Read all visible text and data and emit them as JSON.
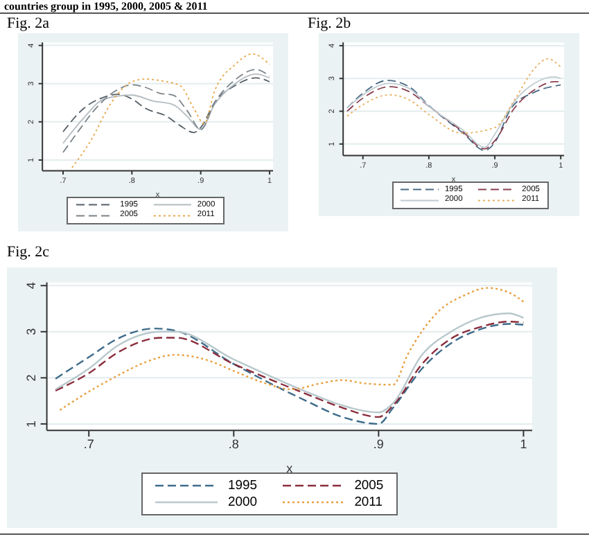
{
  "chart_data": [
    {
      "type": "line",
      "title": "Fig. 2a",
      "xlabel": "x",
      "annotations": [
        "countries group in 1995,  2000, 2005 & 2011"
      ],
      "xlim": [
        0.67,
        1.005
      ],
      "xticks": [
        {
          "value": 0.7,
          "label": ".7"
        },
        {
          "value": 0.8,
          "label": ".8"
        },
        {
          "value": 0.9,
          "label": ".9"
        },
        {
          "value": 1,
          "label": "1"
        }
      ],
      "ylim": [
        0.72,
        4.08
      ],
      "yticks": [
        1,
        2,
        3,
        4
      ],
      "grid": "y",
      "legend": "bottom",
      "marker": "none",
      "series": [
        {
          "name": "1995",
          "color": "#555f66",
          "line_style": "dashed",
          "x": [
            0.7,
            0.73,
            0.76,
            0.78,
            0.8,
            0.82,
            0.85,
            0.87,
            0.89,
            0.9,
            0.92,
            0.95,
            0.98,
            1.0
          ],
          "values": [
            1.74,
            2.35,
            2.65,
            2.72,
            2.6,
            2.35,
            2.15,
            1.9,
            1.72,
            1.85,
            2.5,
            2.95,
            3.15,
            3.05
          ]
        },
        {
          "name": "2000",
          "color": "#b4bcc0",
          "line_style": "solid",
          "x": [
            0.7,
            0.73,
            0.76,
            0.8,
            0.83,
            0.86,
            0.88,
            0.9,
            0.92,
            0.95,
            0.98,
            1.0
          ],
          "values": [
            1.44,
            2.1,
            2.6,
            2.7,
            2.55,
            2.45,
            2.15,
            1.8,
            2.45,
            3.0,
            3.25,
            3.15
          ]
        },
        {
          "name": "2005",
          "color": "#7a8288",
          "line_style": "dashed",
          "x": [
            0.7,
            0.72,
            0.75,
            0.78,
            0.8,
            0.82,
            0.84,
            0.86,
            0.88,
            0.9,
            0.92,
            0.95,
            0.98,
            1.0
          ],
          "values": [
            1.2,
            1.7,
            2.4,
            2.85,
            2.97,
            2.9,
            2.75,
            2.7,
            2.3,
            1.8,
            2.5,
            3.1,
            3.37,
            3.2
          ]
        },
        {
          "name": "2011",
          "color": "#e8a84a",
          "line_style": "dotted",
          "x": [
            0.713,
            0.74,
            0.77,
            0.8,
            0.82,
            0.85,
            0.87,
            0.89,
            0.905,
            0.92,
            0.95,
            0.975,
            1.0
          ],
          "values": [
            0.8,
            1.5,
            2.5,
            3.05,
            3.12,
            3.05,
            2.95,
            2.35,
            1.95,
            2.8,
            3.5,
            3.78,
            3.5
          ]
        }
      ]
    },
    {
      "type": "line",
      "title": "Fig. 2b",
      "xlabel": "x",
      "xlim": [
        0.67,
        1.005
      ],
      "xticks": [
        {
          "value": 0.7,
          "label": ".7"
        },
        {
          "value": 0.8,
          "label": ".8"
        },
        {
          "value": 0.9,
          "label": ".9"
        },
        {
          "value": 1,
          "label": "1"
        }
      ],
      "ylim": [
        0.65,
        4.1
      ],
      "yticks": [
        1,
        2,
        3,
        4
      ],
      "grid": "y",
      "legend": "bottom right",
      "marker": "none",
      "series": [
        {
          "name": "1995",
          "color": "#4a6a86",
          "line_style": "dashed",
          "x": [
            0.676,
            0.7,
            0.737,
            0.77,
            0.8,
            0.852,
            0.885,
            0.9,
            0.925,
            0.96,
            1.0
          ],
          "values": [
            2.1,
            2.55,
            2.94,
            2.75,
            2.17,
            1.33,
            0.8,
            1.05,
            2.1,
            2.58,
            2.8
          ]
        },
        {
          "name": "2005",
          "color": "#8a4050",
          "line_style": "dashed",
          "x": [
            0.676,
            0.7,
            0.74,
            0.77,
            0.8,
            0.85,
            0.885,
            0.9,
            0.93,
            0.96,
            0.99,
            1.0
          ],
          "values": [
            2.0,
            2.4,
            2.75,
            2.6,
            2.15,
            1.4,
            0.85,
            1.1,
            2.1,
            2.65,
            2.9,
            2.9
          ]
        },
        {
          "name": "2000",
          "color": "#c0ccd0",
          "line_style": "solid",
          "x": [
            0.676,
            0.7,
            0.74,
            0.77,
            0.8,
            0.85,
            0.885,
            0.9,
            0.93,
            0.96,
            0.99,
            1.0
          ],
          "values": [
            2.1,
            2.5,
            2.85,
            2.7,
            2.15,
            1.45,
            0.9,
            1.3,
            2.3,
            2.85,
            3.05,
            3.0
          ]
        },
        {
          "name": "2011",
          "color": "#e8b060",
          "line_style": "dotted",
          "x": [
            0.676,
            0.7,
            0.74,
            0.77,
            0.8,
            0.85,
            0.9,
            0.93,
            0.96,
            0.98,
            1.0
          ],
          "values": [
            1.85,
            2.2,
            2.5,
            2.35,
            1.9,
            1.33,
            1.5,
            2.35,
            3.3,
            3.6,
            3.35
          ]
        }
      ]
    },
    {
      "type": "line",
      "title": "Fig. 2c",
      "xlabel": "x",
      "xlim": [
        0.671,
        1.006
      ],
      "xticks": [
        {
          "value": 0.7,
          "label": ".7"
        },
        {
          "value": 0.8,
          "label": ".8"
        },
        {
          "value": 0.9,
          "label": ".9"
        },
        {
          "value": 1,
          "label": "1"
        }
      ],
      "ylim": [
        0.86,
        4.07
      ],
      "yticks": [
        1,
        2,
        3,
        4
      ],
      "grid": "y",
      "legend": "bottom",
      "marker": "none",
      "series": [
        {
          "name": "1995",
          "color": "#3d6b8a",
          "line_style": "dashed",
          "x": [
            0.677,
            0.7,
            0.72,
            0.745,
            0.76,
            0.8,
            0.85,
            0.875,
            0.9,
            0.91,
            0.93,
            0.95,
            0.97,
            0.99,
            1.0
          ],
          "values": [
            1.98,
            2.45,
            2.85,
            3.07,
            3.02,
            2.3,
            1.5,
            1.15,
            1.0,
            1.35,
            2.2,
            2.75,
            3.05,
            3.17,
            3.15
          ]
        },
        {
          "name": "2005",
          "color": "#8b2c3c",
          "line_style": "dashed",
          "x": [
            0.677,
            0.7,
            0.72,
            0.75,
            0.76,
            0.8,
            0.85,
            0.875,
            0.9,
            0.91,
            0.93,
            0.95,
            0.97,
            0.99,
            1.0
          ],
          "values": [
            1.72,
            2.1,
            2.55,
            2.87,
            2.87,
            2.3,
            1.65,
            1.35,
            1.15,
            1.4,
            2.3,
            2.85,
            3.1,
            3.22,
            3.2
          ]
        },
        {
          "name": "2000",
          "color": "#b8c8cc",
          "line_style": "solid",
          "x": [
            0.677,
            0.7,
            0.72,
            0.75,
            0.76,
            0.8,
            0.85,
            0.875,
            0.9,
            0.91,
            0.93,
            0.95,
            0.97,
            0.99,
            1.0
          ],
          "values": [
            1.75,
            2.2,
            2.7,
            3.0,
            3.0,
            2.4,
            1.7,
            1.4,
            1.25,
            1.45,
            2.5,
            3.0,
            3.3,
            3.4,
            3.3
          ]
        },
        {
          "name": "2011",
          "color": "#e8a040",
          "line_style": "dotted",
          "x": [
            0.68,
            0.7,
            0.72,
            0.74,
            0.76,
            0.78,
            0.8,
            0.82,
            0.84,
            0.86,
            0.875,
            0.89,
            0.91,
            0.92,
            0.94,
            0.96,
            0.975,
            0.99,
            1.0
          ],
          "values": [
            1.3,
            1.7,
            2.05,
            2.35,
            2.5,
            2.4,
            2.15,
            1.9,
            1.75,
            1.88,
            1.95,
            1.88,
            1.85,
            2.5,
            3.4,
            3.8,
            3.95,
            3.85,
            3.65
          ]
        }
      ]
    }
  ]
}
